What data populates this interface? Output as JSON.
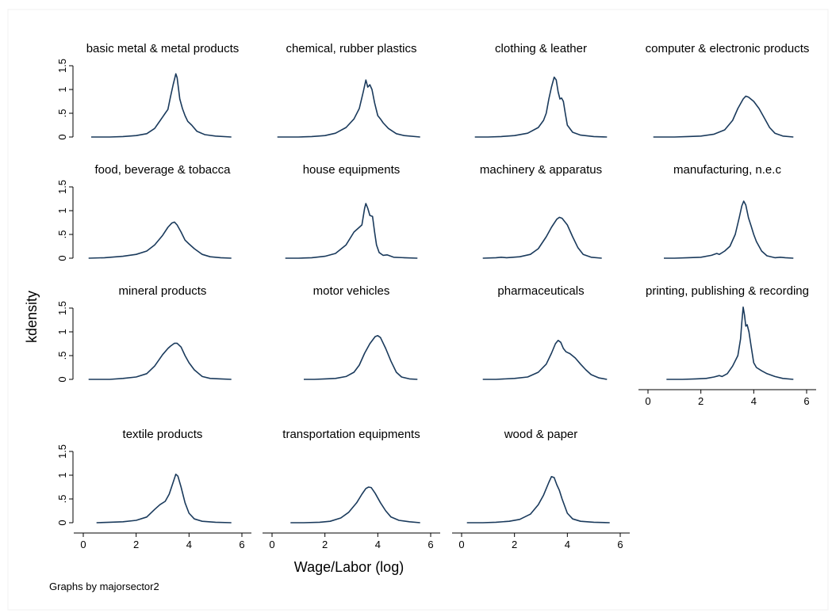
{
  "chart_data": {
    "type": "line",
    "layout": "small multiples 4x4",
    "ylabel": "kdensity",
    "xlabel": "Wage/Labor (log)",
    "note": "Graphs by majorsector2",
    "xlim": [
      0,
      6
    ],
    "ylim": [
      0,
      1.5
    ],
    "x_ticks": [
      0,
      2,
      4,
      6
    ],
    "y_ticks": [
      0,
      0.5,
      1,
      1.5
    ],
    "y_tick_labels": [
      "0",
      ".5",
      "1",
      "1.5"
    ],
    "grid": false,
    "panels": [
      {
        "title": "basic metal & metal products",
        "points": [
          [
            0.3,
            0
          ],
          [
            1,
            0
          ],
          [
            1.5,
            0.01
          ],
          [
            2,
            0.03
          ],
          [
            2.4,
            0.07
          ],
          [
            2.7,
            0.18
          ],
          [
            2.85,
            0.3
          ],
          [
            3,
            0.42
          ],
          [
            3.1,
            0.5
          ],
          [
            3.2,
            0.58
          ],
          [
            3.3,
            0.85
          ],
          [
            3.4,
            1.1
          ],
          [
            3.5,
            1.33
          ],
          [
            3.55,
            1.25
          ],
          [
            3.65,
            0.8
          ],
          [
            3.75,
            0.6
          ],
          [
            3.85,
            0.45
          ],
          [
            3.95,
            0.33
          ],
          [
            4.1,
            0.25
          ],
          [
            4.3,
            0.12
          ],
          [
            4.6,
            0.05
          ],
          [
            5,
            0.02
          ],
          [
            5.6,
            0
          ]
        ]
      },
      {
        "title": "chemical, rubber plastics",
        "points": [
          [
            0.2,
            0
          ],
          [
            1,
            0
          ],
          [
            1.5,
            0.01
          ],
          [
            2,
            0.03
          ],
          [
            2.4,
            0.08
          ],
          [
            2.8,
            0.2
          ],
          [
            3.1,
            0.38
          ],
          [
            3.3,
            0.6
          ],
          [
            3.45,
            0.95
          ],
          [
            3.55,
            1.2
          ],
          [
            3.62,
            1.05
          ],
          [
            3.7,
            1.1
          ],
          [
            3.78,
            1.0
          ],
          [
            3.88,
            0.72
          ],
          [
            4,
            0.45
          ],
          [
            4.1,
            0.38
          ],
          [
            4.2,
            0.3
          ],
          [
            4.4,
            0.18
          ],
          [
            4.7,
            0.07
          ],
          [
            5,
            0.03
          ],
          [
            5.6,
            0
          ]
        ]
      },
      {
        "title": "clothing & leather",
        "points": [
          [
            0.5,
            0
          ],
          [
            1,
            0
          ],
          [
            1.5,
            0.01
          ],
          [
            2,
            0.03
          ],
          [
            2.5,
            0.08
          ],
          [
            2.9,
            0.2
          ],
          [
            3.1,
            0.35
          ],
          [
            3.2,
            0.5
          ],
          [
            3.3,
            0.8
          ],
          [
            3.4,
            1.05
          ],
          [
            3.5,
            1.26
          ],
          [
            3.58,
            1.2
          ],
          [
            3.65,
            0.95
          ],
          [
            3.72,
            0.8
          ],
          [
            3.78,
            0.82
          ],
          [
            3.85,
            0.75
          ],
          [
            3.92,
            0.5
          ],
          [
            4,
            0.25
          ],
          [
            4.2,
            0.1
          ],
          [
            4.5,
            0.04
          ],
          [
            5,
            0.01
          ],
          [
            5.5,
            0
          ]
        ]
      },
      {
        "title": "computer & electronic products",
        "points": [
          [
            0.2,
            0
          ],
          [
            1,
            0
          ],
          [
            1.5,
            0.01
          ],
          [
            2,
            0.02
          ],
          [
            2.5,
            0.06
          ],
          [
            2.9,
            0.15
          ],
          [
            3.2,
            0.35
          ],
          [
            3.4,
            0.6
          ],
          [
            3.6,
            0.8
          ],
          [
            3.7,
            0.86
          ],
          [
            3.8,
            0.84
          ],
          [
            4,
            0.75
          ],
          [
            4.2,
            0.6
          ],
          [
            4.4,
            0.4
          ],
          [
            4.6,
            0.2
          ],
          [
            4.8,
            0.08
          ],
          [
            5.1,
            0.02
          ],
          [
            5.5,
            0
          ]
        ]
      },
      {
        "title": "food, beverage & tobacca",
        "points": [
          [
            0.2,
            0
          ],
          [
            0.8,
            0.01
          ],
          [
            1.5,
            0.04
          ],
          [
            2,
            0.08
          ],
          [
            2.4,
            0.15
          ],
          [
            2.7,
            0.28
          ],
          [
            3,
            0.48
          ],
          [
            3.2,
            0.65
          ],
          [
            3.35,
            0.74
          ],
          [
            3.45,
            0.76
          ],
          [
            3.55,
            0.7
          ],
          [
            3.7,
            0.55
          ],
          [
            3.85,
            0.38
          ],
          [
            4,
            0.3
          ],
          [
            4.2,
            0.2
          ],
          [
            4.5,
            0.08
          ],
          [
            4.8,
            0.03
          ],
          [
            5.2,
            0.01
          ],
          [
            5.6,
            0
          ]
        ]
      },
      {
        "title": "house equipments",
        "points": [
          [
            0.5,
            0
          ],
          [
            1,
            0
          ],
          [
            1.5,
            0.01
          ],
          [
            2,
            0.04
          ],
          [
            2.4,
            0.1
          ],
          [
            2.8,
            0.28
          ],
          [
            3.1,
            0.55
          ],
          [
            3.3,
            0.65
          ],
          [
            3.4,
            0.7
          ],
          [
            3.5,
            1.05
          ],
          [
            3.55,
            1.15
          ],
          [
            3.62,
            1.05
          ],
          [
            3.7,
            0.9
          ],
          [
            3.8,
            0.88
          ],
          [
            3.88,
            0.55
          ],
          [
            3.95,
            0.28
          ],
          [
            4.05,
            0.12
          ],
          [
            4.2,
            0.06
          ],
          [
            4.35,
            0.07
          ],
          [
            4.6,
            0.02
          ],
          [
            5,
            0.01
          ],
          [
            5.5,
            0
          ]
        ]
      },
      {
        "title": "machinery & apparatus",
        "points": [
          [
            0.8,
            0
          ],
          [
            1.3,
            0.01
          ],
          [
            1.5,
            0.02
          ],
          [
            1.7,
            0.01
          ],
          [
            2.2,
            0.03
          ],
          [
            2.6,
            0.08
          ],
          [
            2.9,
            0.2
          ],
          [
            3.2,
            0.45
          ],
          [
            3.4,
            0.65
          ],
          [
            3.6,
            0.82
          ],
          [
            3.7,
            0.86
          ],
          [
            3.8,
            0.84
          ],
          [
            4,
            0.7
          ],
          [
            4.2,
            0.45
          ],
          [
            4.4,
            0.22
          ],
          [
            4.6,
            0.08
          ],
          [
            4.9,
            0.02
          ],
          [
            5.3,
            0
          ]
        ]
      },
      {
        "title": "manufacturing, n.e.c",
        "points": [
          [
            0.6,
            0
          ],
          [
            1,
            0
          ],
          [
            1.5,
            0.01
          ],
          [
            2,
            0.02
          ],
          [
            2.4,
            0.06
          ],
          [
            2.6,
            0.1
          ],
          [
            2.7,
            0.08
          ],
          [
            2.9,
            0.15
          ],
          [
            3.1,
            0.25
          ],
          [
            3.3,
            0.5
          ],
          [
            3.45,
            0.85
          ],
          [
            3.55,
            1.1
          ],
          [
            3.62,
            1.2
          ],
          [
            3.7,
            1.12
          ],
          [
            3.8,
            0.85
          ],
          [
            3.9,
            0.68
          ],
          [
            4,
            0.5
          ],
          [
            4.1,
            0.35
          ],
          [
            4.3,
            0.15
          ],
          [
            4.5,
            0.05
          ],
          [
            4.8,
            0.01
          ],
          [
            5,
            0.02
          ],
          [
            5.2,
            0.01
          ],
          [
            5.5,
            0
          ]
        ]
      },
      {
        "title": "mineral products",
        "points": [
          [
            0.2,
            0
          ],
          [
            1,
            0
          ],
          [
            1.5,
            0.02
          ],
          [
            2,
            0.05
          ],
          [
            2.4,
            0.12
          ],
          [
            2.7,
            0.28
          ],
          [
            3,
            0.52
          ],
          [
            3.2,
            0.65
          ],
          [
            3.3,
            0.7
          ],
          [
            3.45,
            0.76
          ],
          [
            3.55,
            0.76
          ],
          [
            3.7,
            0.68
          ],
          [
            3.85,
            0.5
          ],
          [
            4,
            0.35
          ],
          [
            4.2,
            0.2
          ],
          [
            4.5,
            0.06
          ],
          [
            4.8,
            0.02
          ],
          [
            5.2,
            0.01
          ],
          [
            5.6,
            0
          ]
        ]
      },
      {
        "title": "motor vehicles",
        "points": [
          [
            1.2,
            0
          ],
          [
            1.6,
            0
          ],
          [
            2,
            0.01
          ],
          [
            2.4,
            0.02
          ],
          [
            2.8,
            0.06
          ],
          [
            3.1,
            0.15
          ],
          [
            3.3,
            0.3
          ],
          [
            3.5,
            0.55
          ],
          [
            3.7,
            0.75
          ],
          [
            3.9,
            0.9
          ],
          [
            4,
            0.92
          ],
          [
            4.1,
            0.88
          ],
          [
            4.3,
            0.65
          ],
          [
            4.5,
            0.38
          ],
          [
            4.7,
            0.15
          ],
          [
            4.9,
            0.05
          ],
          [
            5.2,
            0.01
          ],
          [
            5.5,
            0
          ]
        ]
      },
      {
        "title": "pharmaceuticals",
        "points": [
          [
            0.8,
            0
          ],
          [
            1.3,
            0
          ],
          [
            2,
            0.02
          ],
          [
            2.5,
            0.05
          ],
          [
            2.9,
            0.15
          ],
          [
            3.2,
            0.32
          ],
          [
            3.4,
            0.55
          ],
          [
            3.55,
            0.75
          ],
          [
            3.65,
            0.82
          ],
          [
            3.75,
            0.78
          ],
          [
            3.85,
            0.65
          ],
          [
            3.95,
            0.58
          ],
          [
            4.1,
            0.54
          ],
          [
            4.3,
            0.45
          ],
          [
            4.5,
            0.32
          ],
          [
            4.7,
            0.2
          ],
          [
            4.9,
            0.1
          ],
          [
            5.2,
            0.03
          ],
          [
            5.5,
            0
          ]
        ]
      },
      {
        "title": "printing, publishing & recording",
        "points": [
          [
            0.7,
            0
          ],
          [
            1.3,
            0
          ],
          [
            1.8,
            0.01
          ],
          [
            2.2,
            0.02
          ],
          [
            2.5,
            0.05
          ],
          [
            2.7,
            0.08
          ],
          [
            2.8,
            0.06
          ],
          [
            3,
            0.12
          ],
          [
            3.2,
            0.28
          ],
          [
            3.4,
            0.5
          ],
          [
            3.5,
            0.85
          ],
          [
            3.55,
            1.2
          ],
          [
            3.6,
            1.52
          ],
          [
            3.65,
            1.35
          ],
          [
            3.7,
            1.12
          ],
          [
            3.75,
            1.15
          ],
          [
            3.82,
            1.0
          ],
          [
            3.9,
            0.7
          ],
          [
            4,
            0.35
          ],
          [
            4.1,
            0.25
          ],
          [
            4.3,
            0.18
          ],
          [
            4.5,
            0.12
          ],
          [
            4.8,
            0.06
          ],
          [
            5.1,
            0.02
          ],
          [
            5.5,
            0
          ]
        ]
      },
      {
        "title": "textile products",
        "points": [
          [
            0.5,
            0
          ],
          [
            1,
            0.01
          ],
          [
            1.5,
            0.02
          ],
          [
            2,
            0.05
          ],
          [
            2.4,
            0.12
          ],
          [
            2.7,
            0.28
          ],
          [
            2.9,
            0.38
          ],
          [
            3.1,
            0.45
          ],
          [
            3.25,
            0.6
          ],
          [
            3.4,
            0.85
          ],
          [
            3.5,
            1.02
          ],
          [
            3.58,
            0.98
          ],
          [
            3.7,
            0.75
          ],
          [
            3.85,
            0.42
          ],
          [
            4,
            0.2
          ],
          [
            4.2,
            0.08
          ],
          [
            4.5,
            0.03
          ],
          [
            5,
            0.01
          ],
          [
            5.6,
            0
          ]
        ]
      },
      {
        "title": "transportation equipments",
        "points": [
          [
            0.7,
            0
          ],
          [
            1.2,
            0
          ],
          [
            1.8,
            0.01
          ],
          [
            2.2,
            0.03
          ],
          [
            2.6,
            0.1
          ],
          [
            2.9,
            0.22
          ],
          [
            3.2,
            0.42
          ],
          [
            3.4,
            0.6
          ],
          [
            3.55,
            0.72
          ],
          [
            3.65,
            0.75
          ],
          [
            3.75,
            0.74
          ],
          [
            3.9,
            0.62
          ],
          [
            4.1,
            0.42
          ],
          [
            4.3,
            0.25
          ],
          [
            4.5,
            0.12
          ],
          [
            4.8,
            0.05
          ],
          [
            5.2,
            0.02
          ],
          [
            5.6,
            0
          ]
        ]
      },
      {
        "title": "wood & paper",
        "points": [
          [
            0.2,
            0
          ],
          [
            0.8,
            0
          ],
          [
            1.3,
            0.01
          ],
          [
            1.8,
            0.03
          ],
          [
            2.2,
            0.07
          ],
          [
            2.6,
            0.18
          ],
          [
            2.9,
            0.38
          ],
          [
            3.1,
            0.58
          ],
          [
            3.3,
            0.85
          ],
          [
            3.4,
            0.97
          ],
          [
            3.5,
            0.95
          ],
          [
            3.6,
            0.8
          ],
          [
            3.7,
            0.68
          ],
          [
            3.8,
            0.5
          ],
          [
            3.9,
            0.35
          ],
          [
            4,
            0.2
          ],
          [
            4.2,
            0.08
          ],
          [
            4.5,
            0.03
          ],
          [
            5,
            0.01
          ],
          [
            5.6,
            0
          ]
        ]
      }
    ]
  }
}
